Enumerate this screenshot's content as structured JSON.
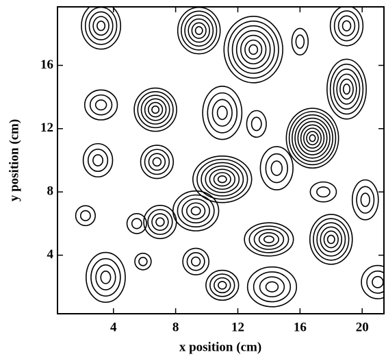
{
  "chart_data": {
    "type": "contour",
    "x_label": "x position (cm)",
    "y_label": "y position (cm)",
    "xlim": [
      0.4,
      21.4
    ],
    "ylim": [
      0.3,
      19.7
    ],
    "xticks": [
      4,
      8,
      12,
      16,
      20
    ],
    "yticks": [
      4,
      8,
      12,
      16
    ],
    "color": "#000000"
  }
}
